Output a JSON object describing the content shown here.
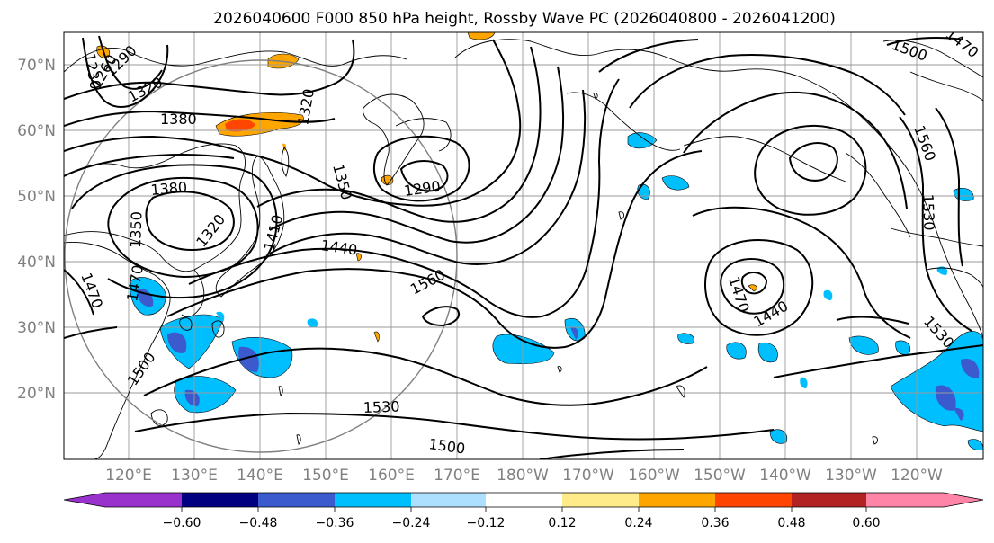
{
  "title": "2026040600 F000 850 hPa height, Rossby Wave PC (2026040800 - 2026041200)",
  "map": {
    "lat_labels": [
      "70°N",
      "60°N",
      "50°N",
      "40°N",
      "30°N",
      "20°N"
    ],
    "lon_labels": [
      "120°E",
      "130°E",
      "140°E",
      "150°E",
      "160°E",
      "170°E",
      "180°W",
      "170°W",
      "160°W",
      "150°W",
      "140°W",
      "130°W",
      "120°W"
    ],
    "contour_labels": [
      "1230",
      "1260",
      "1290",
      "1320",
      "1320",
      "1380",
      "1380",
      "1350",
      "1320",
      "1410",
      "1350",
      "1290",
      "1440",
      "1560",
      "1470",
      "1470",
      "1500",
      "1530",
      "1500",
      "1470",
      "1440",
      "1560",
      "1530",
      "1530",
      "1500",
      "1470"
    ],
    "colors": {
      "land_outline": "#000000",
      "grid": "#9a9a9a",
      "range_ring": "#808080"
    }
  },
  "colorbar": {
    "ticks": [
      "−0.60",
      "−0.48",
      "−0.36",
      "−0.24",
      "−0.12",
      "0.12",
      "0.24",
      "0.36",
      "0.48",
      "0.60"
    ],
    "colors": [
      "#9932CC",
      "#000080",
      "#3A5ACD",
      "#00BFFF",
      "#ADDFFF",
      "#FFFFFF",
      "#FFEB8A",
      "#FFA500",
      "#FF4500",
      "#B22222",
      "#FF85A8"
    ]
  }
}
